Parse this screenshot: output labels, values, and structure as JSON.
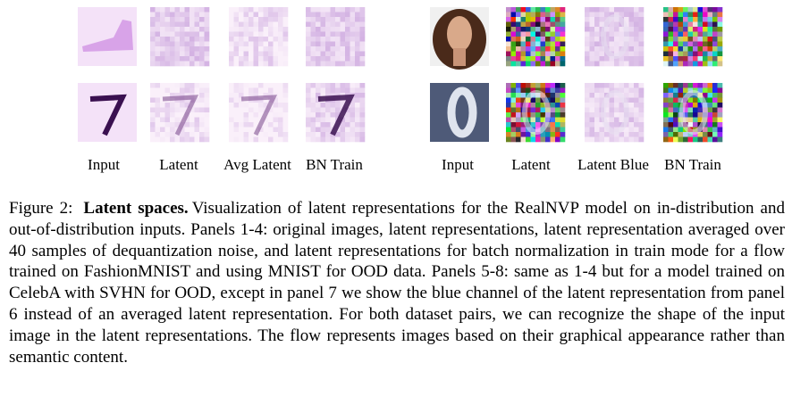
{
  "figure": {
    "left_labels": [
      "Input",
      "Latent",
      "Avg Latent",
      "BN Train"
    ],
    "right_labels": [
      "Input",
      "Latent",
      "Latent Blue",
      "BN Train"
    ],
    "caption": {
      "label": "Figure 2:",
      "title": "Latent spaces.",
      "text": "Visualization of latent representations for the RealNVP model on in-distribution and out-of-distribution inputs. Panels 1-4: original images, latent representations, latent representation averaged over 40 samples of dequantization noise, and latent representations for batch normalization in train mode for a flow trained on FashionMNIST and using MNIST for OOD data. Panels 5-8: same as 1-4 but for a model trained on CelebA with SVHN for OOD, except in panel 7 we show the blue channel of the latent representation from panel 6 instead of an averaged latent representation. For both dataset pairs, we can recognize the shape of the input image in the latent representations. The flow represents images based on their graphical appearance rather than semantic content."
    }
  }
}
